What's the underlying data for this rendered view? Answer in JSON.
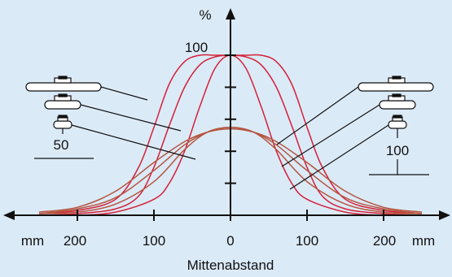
{
  "chart_data": {
    "type": "line",
    "title": "",
    "xlabel": "Mittenabstand",
    "ylabel": "%",
    "x_unit_left": "mm",
    "x_unit_right": "mm",
    "xlim": [
      -265,
      265
    ],
    "ylim": [
      0,
      112
    ],
    "x_ticks": [
      -200,
      -100,
      0,
      100,
      200
    ],
    "x_tick_labels": [
      "200",
      "100",
      "0",
      "100",
      "200"
    ],
    "y_ticks": [
      100
    ],
    "y_tick_labels": [
      "100"
    ],
    "grid": false,
    "colors": {
      "red": "#d4213a",
      "brown": "#b5553f",
      "axis": "#111111",
      "background": "#dbeaf7"
    },
    "annotations": {
      "left_distance_label": "50",
      "right_distance_label": "100"
    },
    "series": [
      {
        "color": "#d4213a",
        "x": [
          -250,
          -200,
          -150,
          -120,
          -100,
          -80,
          -60,
          -40,
          -20,
          0,
          20,
          40,
          60,
          80,
          100,
          120,
          150,
          200,
          250
        ],
        "y": [
          1,
          3,
          10,
          30,
          55,
          82,
          96,
          100,
          100,
          100,
          100,
          100,
          96,
          82,
          55,
          30,
          10,
          3,
          1
        ]
      },
      {
        "color": "#d4213a",
        "x": [
          -250,
          -200,
          -150,
          -120,
          -100,
          -80,
          -60,
          -40,
          -20,
          0,
          20,
          40,
          60,
          80,
          100,
          120,
          150,
          200,
          250
        ],
        "y": [
          0,
          1,
          4,
          12,
          30,
          56,
          80,
          94,
          99,
          100,
          99,
          94,
          80,
          56,
          30,
          12,
          4,
          1,
          0
        ]
      },
      {
        "color": "#d4213a",
        "x": [
          -250,
          -200,
          -150,
          -100,
          -80,
          -60,
          -40,
          -20,
          0,
          20,
          40,
          60,
          80,
          100,
          150,
          200,
          250
        ],
        "y": [
          0,
          0,
          2,
          10,
          20,
          40,
          68,
          92,
          100,
          92,
          68,
          40,
          20,
          10,
          2,
          0,
          0
        ]
      },
      {
        "color": "#b5553f",
        "x": [
          -250,
          -200,
          -150,
          -100,
          -60,
          -30,
          0,
          30,
          60,
          100,
          150,
          200,
          250
        ],
        "y": [
          2,
          5,
          15,
          33,
          46,
          52,
          54,
          52,
          46,
          33,
          15,
          5,
          2
        ]
      },
      {
        "color": "#b5553f",
        "x": [
          -250,
          -200,
          -150,
          -100,
          -60,
          -30,
          0,
          30,
          60,
          100,
          150,
          200,
          250
        ],
        "y": [
          1,
          4,
          11,
          28,
          44,
          52,
          55,
          52,
          44,
          28,
          11,
          4,
          1
        ]
      },
      {
        "color": "#b5553f",
        "x": [
          -250,
          -200,
          -150,
          -100,
          -60,
          -30,
          0,
          30,
          60,
          100,
          150,
          200,
          250
        ],
        "y": [
          1,
          2,
          7,
          21,
          41,
          52,
          55,
          52,
          41,
          21,
          7,
          2,
          1
        ]
      }
    ]
  }
}
